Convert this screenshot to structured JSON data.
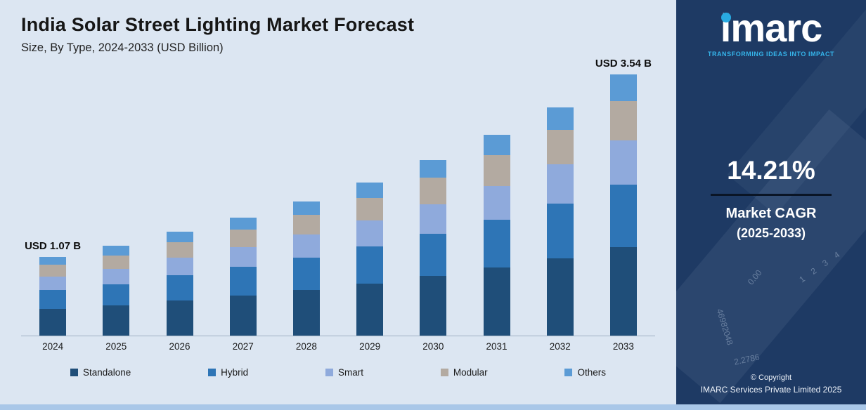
{
  "chart_data": {
    "type": "bar",
    "stacked": true,
    "title": "India Solar Street Lighting Market Forecast",
    "subtitle": "Size, By Type, 2024-2033 (USD Billion)",
    "unit": "USD Billion",
    "categories": [
      "2024",
      "2025",
      "2026",
      "2027",
      "2028",
      "2029",
      "2030",
      "2031",
      "2032",
      "2033"
    ],
    "series": [
      {
        "name": "Standalone",
        "color": "#1f4e79",
        "values": [
          0.36,
          0.41,
          0.48,
          0.54,
          0.62,
          0.71,
          0.81,
          0.92,
          1.05,
          1.2
        ]
      },
      {
        "name": "Hybrid",
        "color": "#2e75b6",
        "values": [
          0.26,
          0.29,
          0.34,
          0.39,
          0.44,
          0.5,
          0.57,
          0.65,
          0.74,
          0.85
        ]
      },
      {
        "name": "Smart",
        "color": "#8faadc",
        "values": [
          0.18,
          0.21,
          0.24,
          0.27,
          0.31,
          0.35,
          0.4,
          0.46,
          0.53,
          0.6
        ]
      },
      {
        "name": "Modular",
        "color": "#b3aaa1",
        "values": [
          0.16,
          0.18,
          0.21,
          0.24,
          0.27,
          0.31,
          0.36,
          0.42,
          0.47,
          0.53
        ]
      },
      {
        "name": "Others",
        "color": "#5b9bd5",
        "values": [
          0.11,
          0.13,
          0.14,
          0.16,
          0.18,
          0.21,
          0.24,
          0.27,
          0.31,
          0.36
        ]
      }
    ],
    "totals": [
      1.07,
      1.22,
      1.41,
      1.6,
      1.82,
      2.08,
      2.38,
      2.72,
      3.1,
      3.54
    ],
    "annotations": [
      {
        "category": "2024",
        "label": "USD 1.07 B"
      },
      {
        "category": "2033",
        "label": "USD 3.54 B"
      }
    ],
    "ylim": [
      0,
      3.9
    ],
    "grid": false,
    "legend_position": "bottom"
  },
  "sidebar": {
    "logo_text": "imarc",
    "tagline": "TRANSFORMING IDEAS INTO IMPACT",
    "cagr_value": "14.21%",
    "cagr_label_line1": "Market CAGR",
    "cagr_label_line2": "(2025-2033)",
    "copyright_line1": "© Copyright",
    "copyright_line2": "IMARC Services Private Limited 2025",
    "decor_numbers": [
      "0.00",
      "1 2 3 4",
      "46982048",
      "2.2786"
    ],
    "colors": {
      "background": "#1e3a64",
      "accent": "#29abe2"
    }
  }
}
